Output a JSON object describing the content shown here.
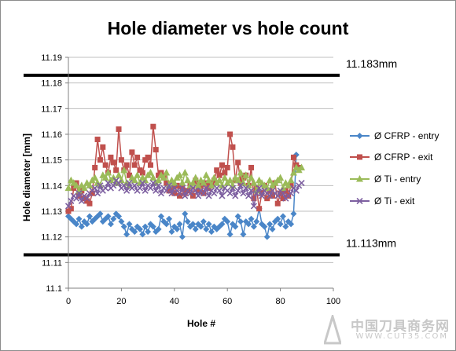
{
  "chart_data": {
    "type": "line",
    "title": "Hole diameter vs hole count",
    "xlabel": "Hole #",
    "ylabel": "Hole diameter [mm]",
    "xlim": [
      0,
      100
    ],
    "ylim": [
      11.1,
      11.19
    ],
    "xticks": [
      "0",
      "20",
      "40",
      "60",
      "80",
      "100"
    ],
    "yticks": [
      "11.1",
      "11.11",
      "11.12",
      "11.13",
      "11.14",
      "11.15",
      "11.16",
      "11.17",
      "11.18",
      "11.19"
    ],
    "grid": "horizontal",
    "legend": "right",
    "limits": [
      {
        "value": 11.183,
        "label": "11.183mm",
        "color": "#000000"
      },
      {
        "value": 11.113,
        "label": "11.113mm",
        "color": "#000000"
      }
    ],
    "series": [
      {
        "name": "Ø CFRP - entry",
        "color": "#4a86c8",
        "marker": "diamond",
        "x": [
          0,
          1,
          2,
          3,
          4,
          5,
          6,
          7,
          8,
          9,
          10,
          11,
          12,
          13,
          14,
          15,
          16,
          17,
          18,
          19,
          20,
          21,
          22,
          23,
          24,
          25,
          26,
          27,
          28,
          29,
          30,
          31,
          32,
          33,
          34,
          35,
          36,
          37,
          38,
          39,
          40,
          41,
          42,
          43,
          44,
          45,
          46,
          47,
          48,
          49,
          50,
          51,
          52,
          53,
          54,
          55,
          56,
          57,
          58,
          59,
          60,
          61,
          62,
          63,
          64,
          65,
          66,
          67,
          68,
          69,
          70,
          71,
          72,
          73,
          74,
          75,
          76,
          77,
          78,
          79,
          80,
          81,
          82,
          83,
          84,
          85,
          86
        ],
        "y": [
          11.128,
          11.127,
          11.126,
          11.125,
          11.127,
          11.124,
          11.126,
          11.125,
          11.128,
          11.126,
          11.127,
          11.128,
          11.129,
          11.126,
          11.127,
          11.128,
          11.125,
          11.127,
          11.129,
          11.128,
          11.126,
          11.124,
          11.121,
          11.125,
          11.123,
          11.122,
          11.124,
          11.123,
          11.121,
          11.124,
          11.122,
          11.125,
          11.124,
          11.122,
          11.123,
          11.128,
          11.126,
          11.125,
          11.127,
          11.122,
          11.124,
          11.123,
          11.125,
          11.12,
          11.129,
          11.126,
          11.124,
          11.125,
          11.123,
          11.125,
          11.124,
          11.126,
          11.123,
          11.125,
          11.122,
          11.124,
          11.123,
          11.124,
          11.125,
          11.127,
          11.126,
          11.121,
          11.125,
          11.124,
          11.128,
          11.126,
          11.121,
          11.126,
          11.125,
          11.127,
          11.124,
          11.126,
          11.131,
          11.125,
          11.124,
          11.12,
          11.125,
          11.123,
          11.126,
          11.127,
          11.125,
          11.128,
          11.124,
          11.126,
          11.125,
          11.129,
          11.152
        ]
      },
      {
        "name": "Ø CFRP - exit",
        "color": "#c0504d",
        "marker": "square",
        "x": [
          0,
          1,
          2,
          3,
          4,
          5,
          6,
          7,
          8,
          9,
          10,
          11,
          12,
          13,
          14,
          15,
          16,
          17,
          18,
          19,
          20,
          21,
          22,
          23,
          24,
          25,
          26,
          27,
          28,
          29,
          30,
          31,
          32,
          33,
          34,
          35,
          36,
          37,
          38,
          39,
          40,
          41,
          42,
          43,
          44,
          45,
          46,
          47,
          48,
          49,
          50,
          51,
          52,
          53,
          54,
          55,
          56,
          57,
          58,
          59,
          60,
          61,
          62,
          63,
          64,
          65,
          66,
          67,
          68,
          69,
          70,
          71,
          72,
          73,
          74,
          75,
          76,
          77,
          78,
          79,
          80,
          81,
          82,
          83,
          84,
          85,
          86,
          87
        ],
        "y": [
          11.13,
          11.131,
          11.139,
          11.141,
          11.136,
          11.138,
          11.135,
          11.134,
          11.133,
          11.137,
          11.147,
          11.158,
          11.15,
          11.155,
          11.148,
          11.145,
          11.151,
          11.149,
          11.146,
          11.162,
          11.15,
          11.146,
          11.148,
          11.144,
          11.153,
          11.148,
          11.151,
          11.146,
          11.145,
          11.15,
          11.151,
          11.148,
          11.163,
          11.154,
          11.144,
          11.145,
          11.143,
          11.141,
          11.138,
          11.139,
          11.137,
          11.14,
          11.136,
          11.139,
          11.137,
          11.138,
          11.14,
          11.136,
          11.142,
          11.138,
          11.14,
          11.137,
          11.141,
          11.139,
          11.14,
          11.142,
          11.146,
          11.144,
          11.148,
          11.145,
          11.147,
          11.16,
          11.155,
          11.142,
          11.149,
          11.141,
          11.143,
          11.144,
          11.14,
          11.147,
          11.135,
          11.139,
          11.131,
          11.137,
          11.14,
          11.135,
          11.138,
          11.136,
          11.141,
          11.133,
          11.137,
          11.135,
          11.138,
          11.136,
          11.14,
          11.151,
          11.148,
          11.147
        ]
      },
      {
        "name": "Ø Ti - entry",
        "color": "#9bbb59",
        "marker": "triangle",
        "x": [
          0,
          1,
          2,
          3,
          4,
          5,
          6,
          7,
          8,
          9,
          10,
          11,
          12,
          13,
          14,
          15,
          16,
          17,
          18,
          19,
          20,
          21,
          22,
          23,
          24,
          25,
          26,
          27,
          28,
          29,
          30,
          31,
          32,
          33,
          34,
          35,
          36,
          37,
          38,
          39,
          40,
          41,
          42,
          43,
          44,
          45,
          46,
          47,
          48,
          49,
          50,
          51,
          52,
          53,
          54,
          55,
          56,
          57,
          58,
          59,
          60,
          61,
          62,
          63,
          64,
          65,
          66,
          67,
          68,
          69,
          70,
          71,
          72,
          73,
          74,
          75,
          76,
          77,
          78,
          79,
          80,
          81,
          82,
          83,
          84,
          85,
          86,
          87,
          88
        ],
        "y": [
          11.139,
          11.142,
          11.141,
          11.14,
          11.138,
          11.14,
          11.139,
          11.141,
          11.14,
          11.142,
          11.143,
          11.141,
          11.14,
          11.144,
          11.143,
          11.145,
          11.142,
          11.143,
          11.141,
          11.144,
          11.142,
          11.146,
          11.141,
          11.14,
          11.143,
          11.142,
          11.144,
          11.141,
          11.143,
          11.142,
          11.144,
          11.145,
          11.143,
          11.141,
          11.142,
          11.144,
          11.143,
          11.145,
          11.14,
          11.142,
          11.141,
          11.143,
          11.144,
          11.141,
          11.145,
          11.142,
          11.14,
          11.141,
          11.143,
          11.14,
          11.142,
          11.141,
          11.144,
          11.142,
          11.14,
          11.143,
          11.141,
          11.142,
          11.14,
          11.143,
          11.141,
          11.142,
          11.14,
          11.143,
          11.142,
          11.145,
          11.141,
          11.144,
          11.14,
          11.143,
          11.141,
          11.138,
          11.142,
          11.141,
          11.14,
          11.139,
          11.142,
          11.14,
          11.141,
          11.142,
          11.143,
          11.139,
          11.141,
          11.14,
          11.142,
          11.145,
          11.147,
          11.146,
          11.147
        ]
      },
      {
        "name": "Ø Ti - exit",
        "color": "#7d5fa0",
        "marker": "x",
        "x": [
          0,
          1,
          2,
          3,
          4,
          5,
          6,
          7,
          8,
          9,
          10,
          11,
          12,
          13,
          14,
          15,
          16,
          17,
          18,
          19,
          20,
          21,
          22,
          23,
          24,
          25,
          26,
          27,
          28,
          29,
          30,
          31,
          32,
          33,
          34,
          35,
          36,
          37,
          38,
          39,
          40,
          41,
          42,
          43,
          44,
          45,
          46,
          47,
          48,
          49,
          50,
          51,
          52,
          53,
          54,
          55,
          56,
          57,
          58,
          59,
          60,
          61,
          62,
          63,
          64,
          65,
          66,
          67,
          68,
          69,
          70,
          71,
          72,
          73,
          74,
          75,
          76,
          77,
          78,
          79,
          80,
          81,
          82,
          83,
          84,
          85,
          86,
          87,
          88
        ],
        "y": [
          11.132,
          11.134,
          11.136,
          11.135,
          11.137,
          11.134,
          11.136,
          11.135,
          11.137,
          11.138,
          11.139,
          11.137,
          11.14,
          11.138,
          11.139,
          11.141,
          11.139,
          11.14,
          11.142,
          11.141,
          11.139,
          11.14,
          11.138,
          11.141,
          11.139,
          11.14,
          11.138,
          11.139,
          11.141,
          11.138,
          11.14,
          11.139,
          11.141,
          11.138,
          11.14,
          11.137,
          11.139,
          11.138,
          11.14,
          11.137,
          11.139,
          11.138,
          11.137,
          11.139,
          11.136,
          11.138,
          11.137,
          11.139,
          11.138,
          11.136,
          11.138,
          11.137,
          11.139,
          11.136,
          11.138,
          11.137,
          11.139,
          11.138,
          11.136,
          11.139,
          11.138,
          11.137,
          11.139,
          11.136,
          11.138,
          11.14,
          11.137,
          11.139,
          11.136,
          11.138,
          11.132,
          11.137,
          11.139,
          11.136,
          11.138,
          11.137,
          11.136,
          11.138,
          11.137,
          11.136,
          11.138,
          11.137,
          11.135,
          11.136,
          11.137,
          11.139,
          11.138,
          11.14,
          11.141
        ]
      }
    ]
  },
  "watermark": {
    "text_cn": "中国刀具商务网",
    "text_en": "WWW.CUT35.COM"
  }
}
